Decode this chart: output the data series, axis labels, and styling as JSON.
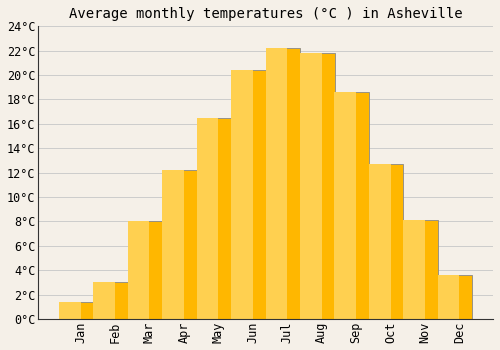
{
  "title": "Average monthly temperatures (°C ) in Asheville",
  "months": [
    "Jan",
    "Feb",
    "Mar",
    "Apr",
    "May",
    "Jun",
    "Jul",
    "Aug",
    "Sep",
    "Oct",
    "Nov",
    "Dec"
  ],
  "values": [
    1.4,
    3.0,
    8.0,
    12.2,
    16.5,
    20.4,
    22.2,
    21.8,
    18.6,
    12.7,
    8.1,
    3.6
  ],
  "bar_color_top": "#FFB700",
  "bar_color_bottom": "#FFA500",
  "bar_edge_color": "#888888",
  "background_color": "#F5F0E8",
  "plot_bg_color": "#F5F0E8",
  "grid_color": "#CCCCCC",
  "ylim": [
    0,
    24
  ],
  "ytick_step": 2,
  "title_fontsize": 10,
  "tick_fontsize": 8.5,
  "font_family": "monospace"
}
